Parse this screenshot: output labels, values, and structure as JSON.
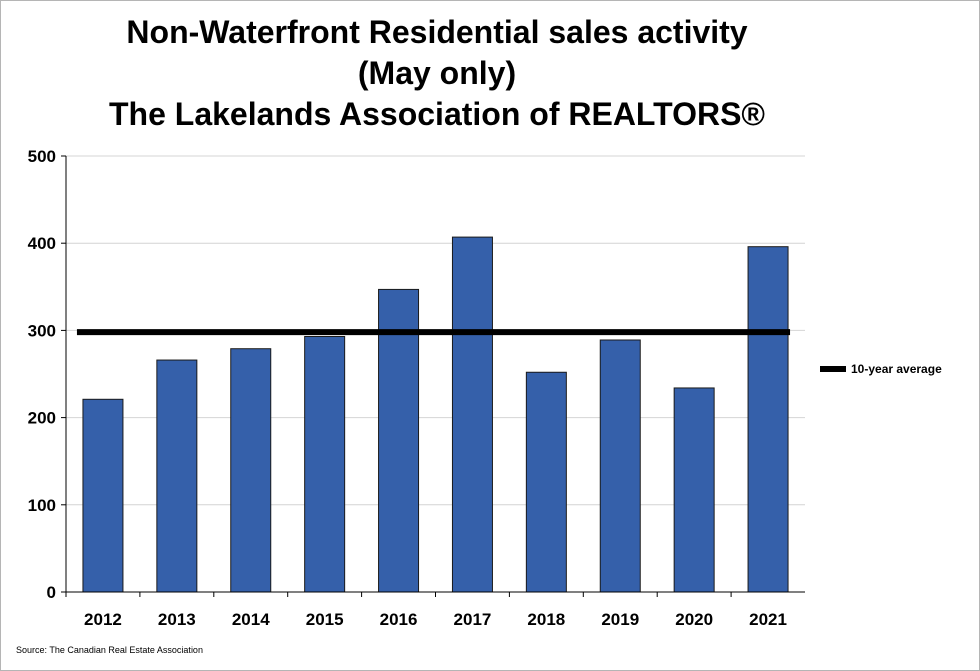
{
  "chart_data": {
    "type": "bar",
    "title_lines": [
      "Non-Waterfront Residential sales activity",
      "(May only)",
      "The Lakelands Association of REALTORS®"
    ],
    "categories": [
      "2012",
      "2013",
      "2014",
      "2015",
      "2016",
      "2017",
      "2018",
      "2019",
      "2020",
      "2021"
    ],
    "values": [
      221,
      266,
      279,
      293,
      347,
      407,
      252,
      289,
      234,
      396
    ],
    "average": {
      "name": "10-year average",
      "value": 298
    },
    "ylim": [
      0,
      500
    ],
    "yticks": [
      0,
      100,
      200,
      300,
      400,
      500
    ],
    "grid": true,
    "legend_position": "right",
    "bar_color": "#3560aa",
    "average_color": "#000000",
    "source": "Source: The Canadian Real Estate Association"
  }
}
